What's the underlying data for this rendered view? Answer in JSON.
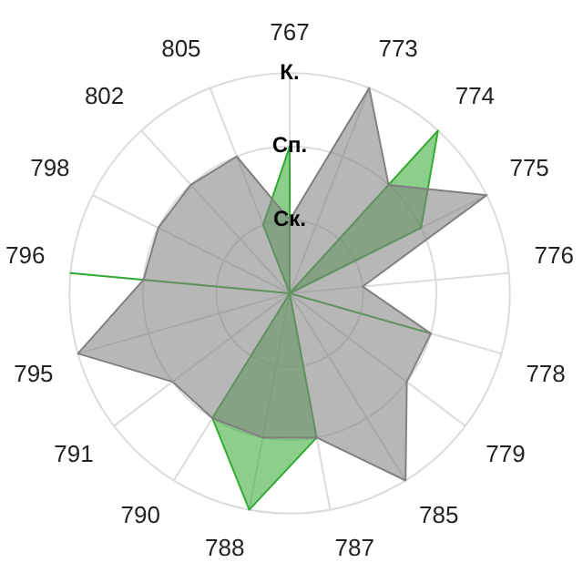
{
  "chart_data": {
    "type": "radar",
    "categories": [
      "767",
      "773",
      "774",
      "775",
      "776",
      "778",
      "779",
      "785",
      "787",
      "788",
      "790",
      "791",
      "795",
      "796",
      "798",
      "802",
      "805"
    ],
    "series": [
      {
        "color": "#808080",
        "values": [
          1,
          3,
          2,
          3,
          1,
          2,
          2,
          3,
          2,
          2,
          2,
          2,
          3,
          2,
          2,
          2,
          2
        ]
      },
      {
        "color": "#33aa33",
        "values": [
          2,
          0,
          3,
          2,
          0,
          2,
          0,
          0,
          2,
          3,
          2,
          0,
          0,
          3,
          0,
          0,
          1
        ]
      }
    ],
    "ylim": [
      0,
      3
    ],
    "yticks": [
      {
        "value": 1,
        "label": "Ск."
      },
      {
        "value": 2,
        "label": "Сп."
      },
      {
        "value": 3,
        "label": "К."
      }
    ],
    "grid": true,
    "legend": false,
    "marker": "none"
  }
}
